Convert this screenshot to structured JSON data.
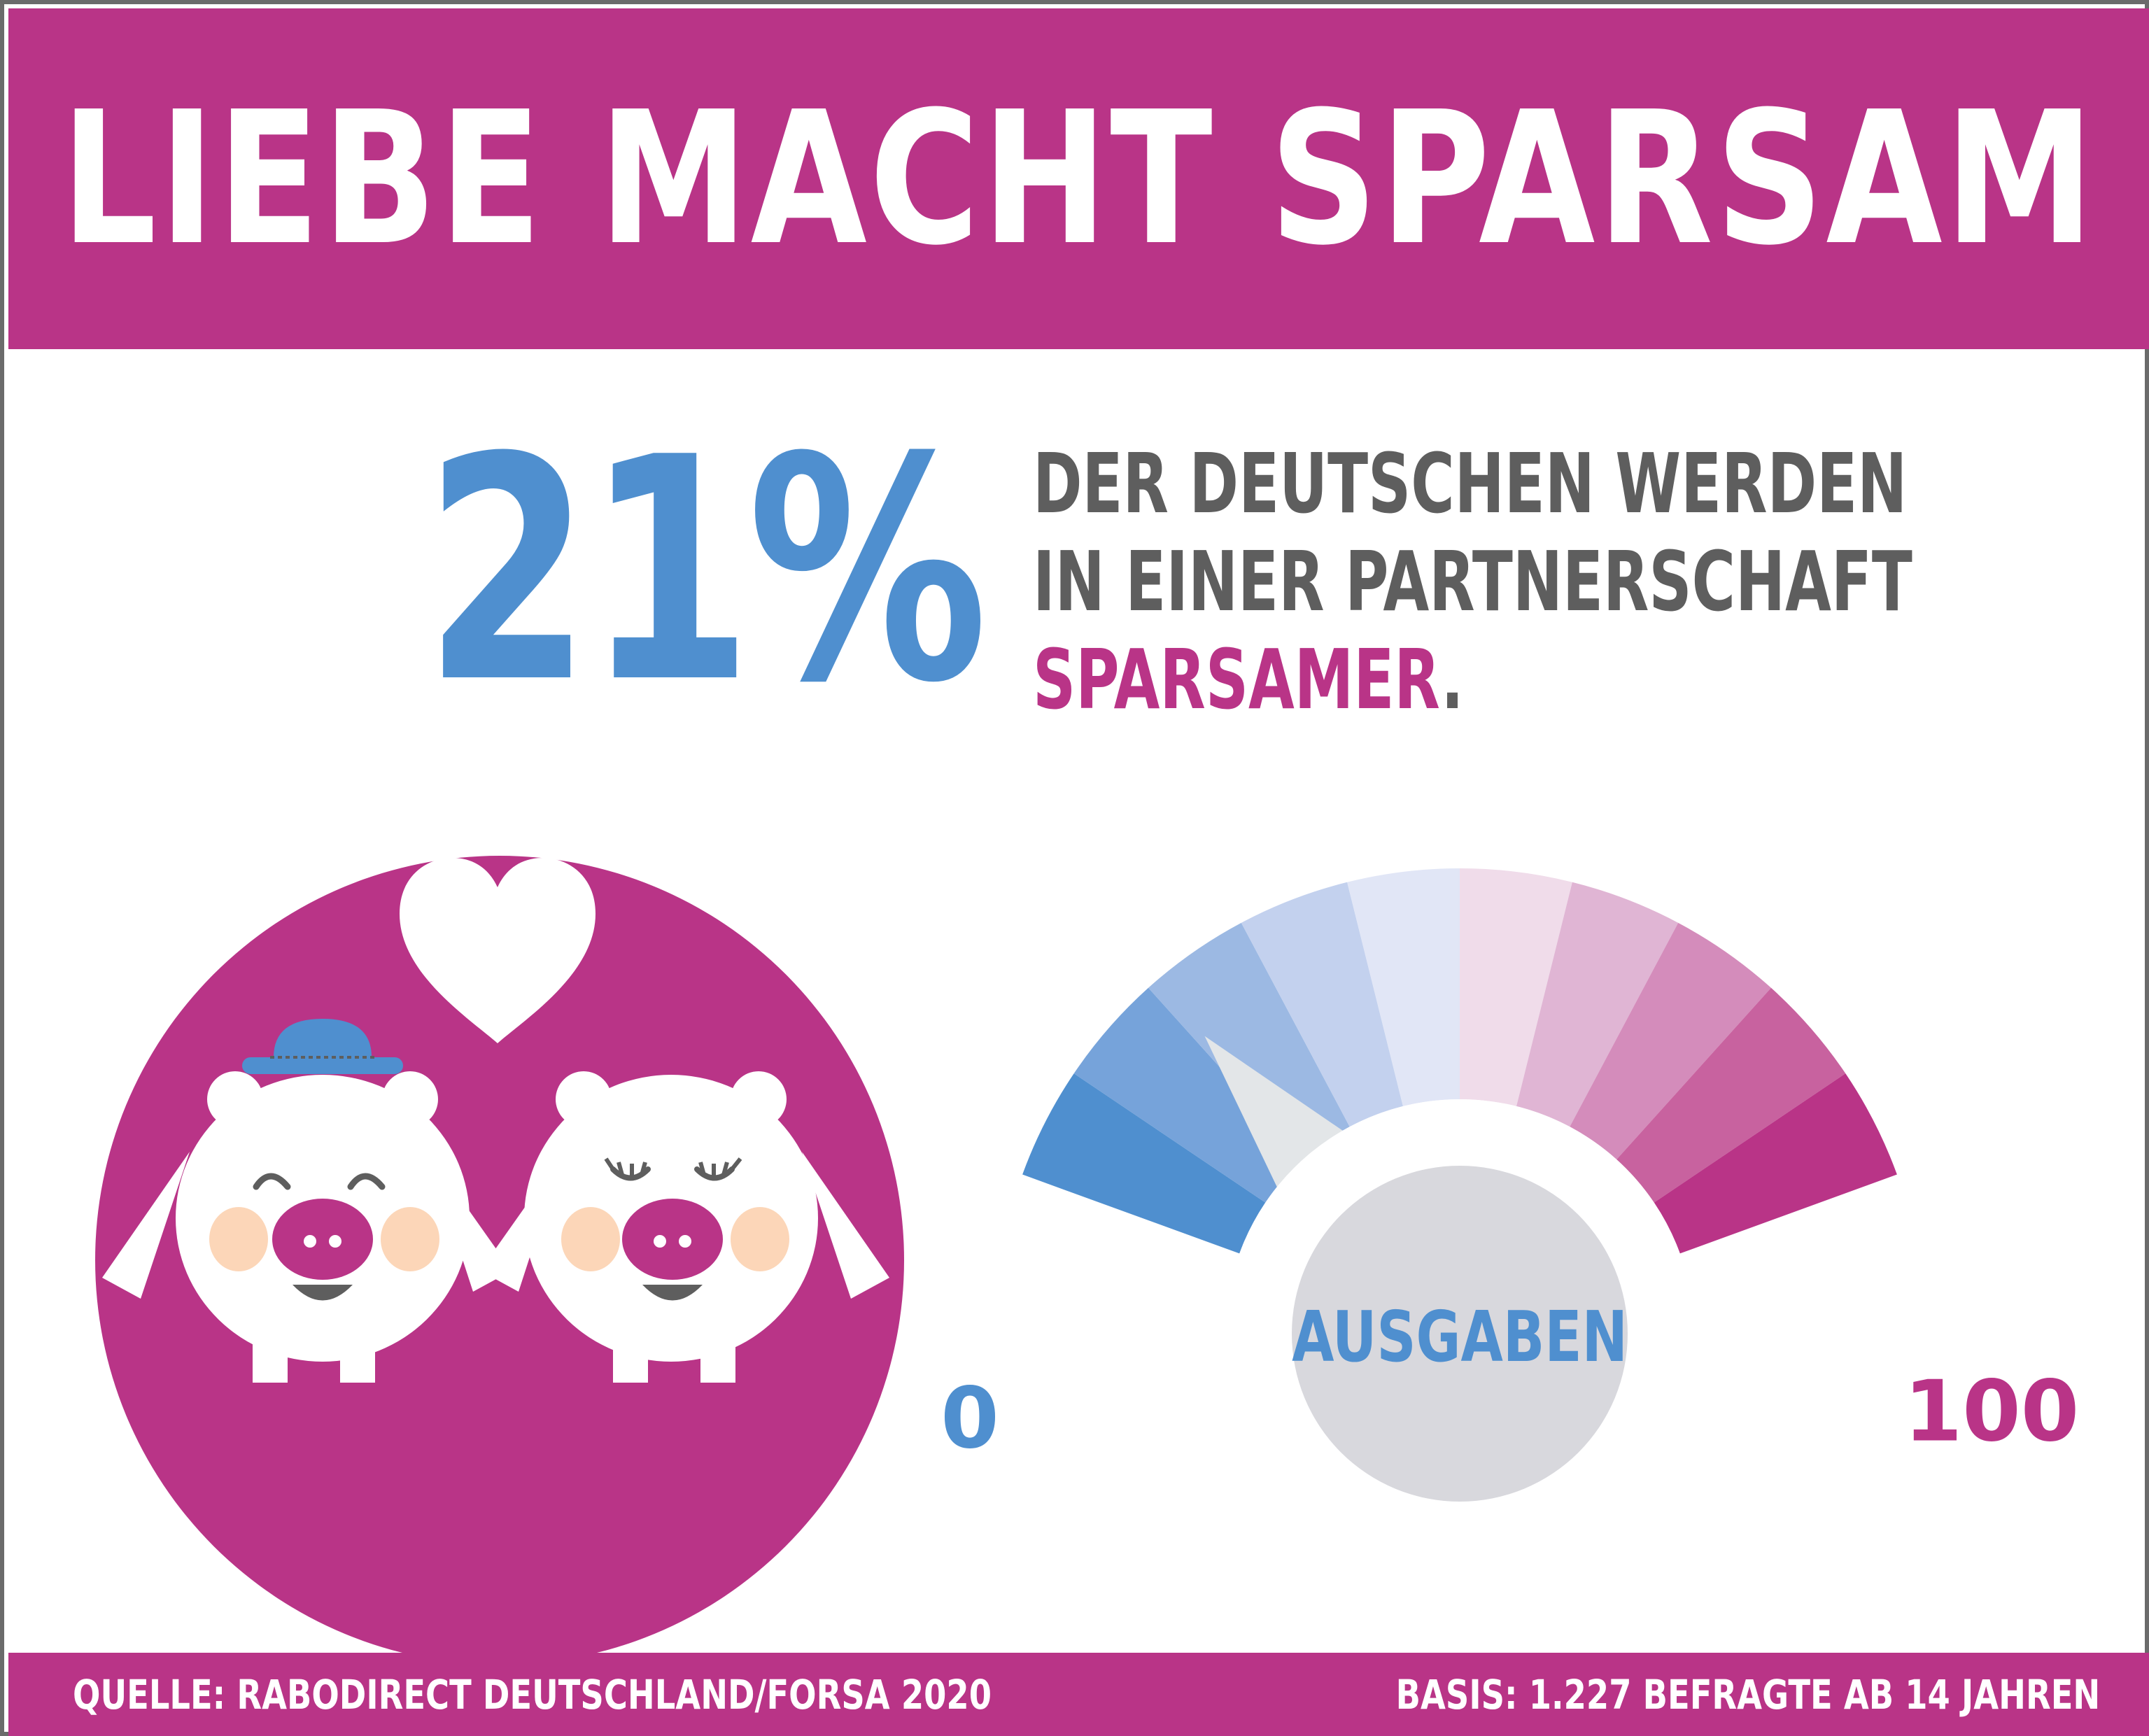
{
  "header": {
    "title": "LIEBE MACHT SPARSAM"
  },
  "headline": {
    "percent": "21%",
    "line1": "DER DEUTSCHEN WERDEN",
    "line2": "IN EINER PARTNERSCHAFT",
    "accent_word": "SPARSAMER",
    "accent_suffix": "."
  },
  "gauge": {
    "center_label": "AUSGABEN",
    "min_label": "0",
    "max_label": "100",
    "needle_level_percent": 21
  },
  "footer": {
    "source": "QUELLE: RABODIRECT DEUTSCHLAND/FORSA 2020",
    "basis": "BASIS: 1.227 BEFRAGTE AB 14 JAHREN"
  },
  "colors": {
    "brand_magenta": "#b93487",
    "accent_blue": "#4f8fcf",
    "text_gray": "#5e5e5e"
  },
  "icons": [
    "heart-icon",
    "piggy-bank-with-hat-icon",
    "piggy-bank-with-lashes-icon",
    "gauge-needle-icon"
  ]
}
